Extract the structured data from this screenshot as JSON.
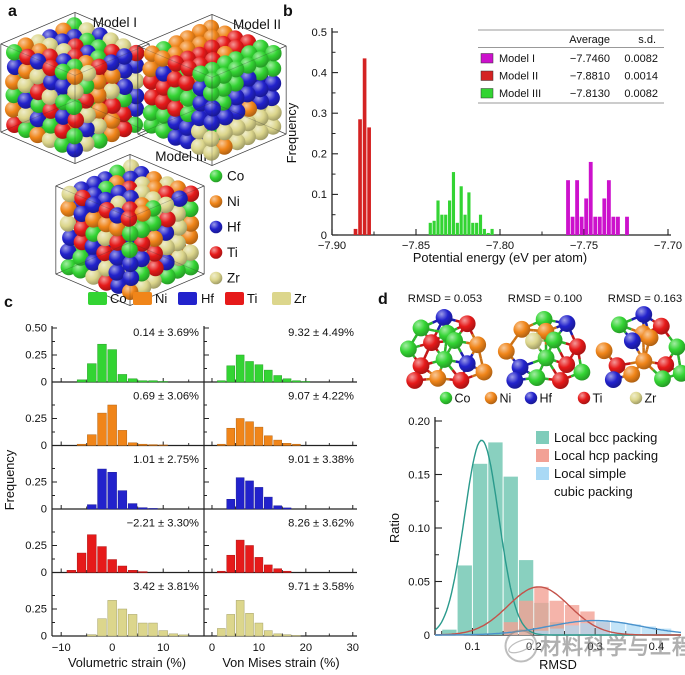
{
  "colors": {
    "Co": "#33d433",
    "Ni": "#f08519",
    "Hf": "#2222cc",
    "Ti": "#e61a1a",
    "Zr": "#dcd68c",
    "model_i": "#cc11cc",
    "model_ii": "#d42222",
    "model_iii": "#33d433",
    "bcc": "#7fccba",
    "hcp": "#f2a195",
    "simple_cubic": "#a9d9f5",
    "bcc_curve": "#2a9a8c",
    "hcp_curve": "#c4524a",
    "sc_curve": "#4a92cc",
    "axis": "#222222"
  },
  "elements": [
    "Co",
    "Ni",
    "Hf",
    "Ti",
    "Zr"
  ],
  "panel_a": {
    "label": "a",
    "models": [
      {
        "name": "Model I"
      },
      {
        "name": "Model II"
      },
      {
        "name": "Model III"
      }
    ],
    "legend": [
      "Co",
      "Ni",
      "Hf",
      "Ti",
      "Zr"
    ]
  },
  "panel_b": {
    "label": "b",
    "xlabel": "Potential energy (eV per atom)",
    "ylabel": "Frequency",
    "table": {
      "headers": [
        "Average",
        "s.d."
      ],
      "rows": [
        {
          "name": "Model I",
          "color": "#cc11cc",
          "average": "−7.7460",
          "sd": "0.0082"
        },
        {
          "name": "Model II",
          "color": "#d42222",
          "average": "−7.8810",
          "sd": "0.0014"
        },
        {
          "name": "Model III",
          "color": "#33d433",
          "average": "−7.8130",
          "sd": "0.0082"
        }
      ]
    }
  },
  "panel_c": {
    "label": "c",
    "ylabel": "Frequency",
    "legend": [
      "Co",
      "Ni",
      "Hf",
      "Ti",
      "Zr"
    ],
    "xlabel_left": "Volumetric strain (%)",
    "xlabel_right": "Von Mises strain (%)"
  },
  "panel_d": {
    "label": "d",
    "cluster_titles": [
      "RMSD = 0.053",
      "RMSD = 0.100",
      "RMSD = 0.163"
    ],
    "legend_elements": [
      "Co",
      "Ni",
      "Hf",
      "Ti",
      "Zr"
    ],
    "xlabel": "RMSD",
    "ylabel": "Ratio",
    "packing_legend": [
      {
        "label_lines": [
          "Local bcc packing"
        ],
        "color_key": "bcc"
      },
      {
        "label_lines": [
          "Local hcp packing"
        ],
        "color_key": "hcp"
      },
      {
        "label_lines": [
          "Local simple",
          "cubic packing"
        ],
        "color_key": "simple_cubic"
      }
    ],
    "clusters": [
      {
        "rmsd": "0.053",
        "jitter": 0,
        "atoms": [
          "Hf",
          "Co",
          "Ti",
          "Co",
          "Co",
          "Ti",
          "Co",
          "Ni",
          "Ti",
          "Co",
          "Hf",
          "Ti",
          "Ni",
          "Ti",
          "Ni"
        ]
      },
      {
        "rmsd": "0.100",
        "jitter": 2.2,
        "atoms": [
          "Co",
          "Ni",
          "Hf",
          "Ni",
          "Ni",
          "Zr",
          "Co",
          "Ti",
          "Hf",
          "Co",
          "Ti",
          "Hf",
          "Co",
          "Ti",
          "Co"
        ]
      },
      {
        "rmsd": "0.163",
        "jitter": 4.5,
        "atoms": [
          "Hf",
          "Co",
          "Ti",
          "Ni",
          "Ni",
          "Hf",
          "Ni",
          "Co",
          "Ti",
          "Ni",
          "Ti",
          "Hf",
          "Ni",
          "Co",
          "Co"
        ]
      }
    ]
  },
  "watermark": {
    "text": "材料科学与工程"
  },
  "chart_data": [
    {
      "id": "panel_b_potential_energy",
      "type": "bar",
      "title": "",
      "xlabel": "Potential energy (eV per atom)",
      "ylabel": "Frequency",
      "xlim": [
        -7.9,
        -7.7
      ],
      "ylim": [
        0,
        0.5
      ],
      "xticks": [
        -7.9,
        -7.85,
        -7.8,
        -7.75,
        -7.7
      ],
      "xtick_labels": [
        "−7.90",
        "−7.85",
        "−7.80",
        "−7.75",
        "−7.70"
      ],
      "minor_xticks": [
        -7.875,
        -7.825,
        -7.775,
        -7.725
      ],
      "yticks": [
        0,
        0.1,
        0.2,
        0.3,
        0.4,
        0.5
      ],
      "ytick_labels": [
        "0",
        "0.1",
        "0.2",
        "0.3",
        "0.4",
        "0.5"
      ],
      "minor_yticks": [
        0.05,
        0.15,
        0.25,
        0.35,
        0.45
      ],
      "legend_position": "table top-right",
      "series": [
        {
          "name": "Model II",
          "color_key": "model_ii",
          "average": -7.881,
          "sd": 0.0014,
          "bin_width": 0.0026,
          "x": [
            -7.886,
            -7.8833,
            -7.8806,
            -7.8779
          ],
          "values": [
            0.015,
            0.285,
            0.435,
            0.265
          ]
        },
        {
          "name": "Model III",
          "color_key": "model_iii",
          "average": -7.813,
          "sd": 0.0082,
          "bin_width": 0.0023,
          "x": [
            -7.8415,
            -7.8392,
            -7.8369,
            -7.8346,
            -7.8323,
            -7.83,
            -7.8277,
            -7.8254,
            -7.8231,
            -7.8208,
            -7.8185,
            -7.8162,
            -7.8139,
            -7.8116,
            -7.8093,
            -7.807,
            -7.8047
          ],
          "values": [
            0.03,
            0.035,
            0.085,
            0.05,
            0.05,
            0.085,
            0.155,
            0.03,
            0.12,
            0.05,
            0.105,
            0.03,
            0.03,
            0.05,
            0.015,
            0.005,
            0.015
          ]
        },
        {
          "name": "Model I",
          "color_key": "model_i",
          "average": -7.746,
          "sd": 0.0082,
          "bin_width": 0.0027,
          "x": [
            -7.7595,
            -7.7568,
            -7.7541,
            -7.7514,
            -7.7487,
            -7.746,
            -7.7433,
            -7.7406,
            -7.7379,
            -7.7352,
            -7.7325,
            -7.7298,
            -7.7271,
            -7.7244
          ],
          "values": [
            0.135,
            0.045,
            0.135,
            0.045,
            0.09,
            0.18,
            0.045,
            0.045,
            0.09,
            0.135,
            0.045,
            0.045,
            0,
            0.045
          ]
        }
      ]
    },
    {
      "id": "panel_c_strain_histograms",
      "type": "bar",
      "ylabel": "Frequency",
      "ylim": [
        0,
        0.5
      ],
      "yticks": [
        0,
        0.25,
        0.5
      ],
      "ytick_labels": [
        "0",
        "0.25",
        "0.50"
      ],
      "bin_width": 2,
      "columns": [
        {
          "key": "volumetric",
          "xlabel": "Volumetric strain (%)",
          "xlim": [
            -11.8,
            17.8
          ],
          "xticks": [
            -10,
            0,
            10
          ],
          "xtick_labels": [
            "−10",
            "0",
            "10"
          ],
          "minor_xticks": [
            -5,
            5,
            15
          ]
        },
        {
          "key": "von_mises",
          "xlabel": "Von Mises strain (%)",
          "xlim": [
            -1.7,
            30.9
          ],
          "xticks": [
            0,
            10,
            20,
            30
          ],
          "xtick_labels": [
            "0",
            "10",
            "20",
            "30"
          ],
          "minor_xticks": [
            5,
            15,
            25
          ]
        }
      ],
      "rows": [
        {
          "element": "Co",
          "volumetric": {
            "mean_sd": "0.14 ± 3.69%",
            "x": [
              -6,
              -4,
              -2,
              0,
              2,
              4,
              6,
              8,
              10
            ],
            "values": [
              0.02,
              0.17,
              0.35,
              0.3,
              0.07,
              0.03,
              0.012,
              0.012,
              0.005
            ]
          },
          "von_mises": {
            "mean_sd": "9.32 ± 4.49%",
            "x": [
              2,
              4,
              6,
              8,
              10,
              12,
              14,
              16,
              18,
              20
            ],
            "values": [
              0.012,
              0.15,
              0.25,
              0.19,
              0.16,
              0.11,
              0.06,
              0.03,
              0.012,
              0.005
            ]
          }
        },
        {
          "element": "Ni",
          "volumetric": {
            "mean_sd": "0.69 ± 3.06%",
            "x": [
              -6,
              -4,
              -2,
              0,
              2,
              4,
              6,
              8,
              10
            ],
            "values": [
              0.012,
              0.1,
              0.3,
              0.375,
              0.14,
              0.025,
              0.012,
              0.008,
              0.005
            ]
          },
          "von_mises": {
            "mean_sd": "9.07 ± 4.22%",
            "x": [
              2,
              4,
              6,
              8,
              10,
              12,
              14,
              16,
              18
            ],
            "values": [
              0.012,
              0.16,
              0.25,
              0.22,
              0.17,
              0.09,
              0.05,
              0.02,
              0.012
            ]
          }
        },
        {
          "element": "Hf",
          "volumetric": {
            "mean_sd": "1.01 ± 2.75%",
            "x": [
              -4,
              -2,
              0,
              2,
              4,
              6,
              8
            ],
            "values": [
              0.04,
              0.37,
              0.34,
              0.17,
              0.05,
              0.012,
              0.005
            ]
          },
          "von_mises": {
            "mean_sd": "9.01 ± 3.38%",
            "x": [
              4,
              6,
              8,
              10,
              12,
              14,
              16
            ],
            "values": [
              0.09,
              0.29,
              0.26,
              0.2,
              0.11,
              0.03,
              0.01
            ]
          }
        },
        {
          "element": "Ti",
          "volumetric": {
            "mean_sd": "−2.21 ± 3.30%",
            "x": [
              -8,
              -6,
              -4,
              -2,
              0,
              2,
              4,
              6
            ],
            "values": [
              0.02,
              0.18,
              0.35,
              0.24,
              0.12,
              0.06,
              0.02,
              0.008
            ]
          },
          "von_mises": {
            "mean_sd": "8.26 ± 3.62%",
            "x": [
              2,
              4,
              6,
              8,
              10,
              12,
              14,
              16
            ],
            "values": [
              0.012,
              0.16,
              0.3,
              0.25,
              0.14,
              0.07,
              0.035,
              0.012
            ]
          }
        },
        {
          "element": "Zr",
          "volumetric": {
            "mean_sd": "3.42 ± 3.81%",
            "x": [
              -4,
              -2,
              0,
              2,
              4,
              6,
              8,
              10,
              12,
              14
            ],
            "values": [
              0.012,
              0.16,
              0.33,
              0.25,
              0.2,
              0.12,
              0.12,
              0.05,
              0.02,
              0.01
            ]
          },
          "von_mises": {
            "mean_sd": "9.71 ± 3.58%",
            "x": [
              2,
              4,
              6,
              8,
              10,
              12,
              14,
              16,
              18
            ],
            "values": [
              0.07,
              0.2,
              0.33,
              0.21,
              0.12,
              0.05,
              0.02,
              0.012,
              0.005
            ]
          }
        }
      ]
    },
    {
      "id": "panel_d_rmsd_distribution",
      "type": "bar",
      "xlabel": "RMSD",
      "ylabel": "Ratio",
      "xlim": [
        0.039,
        0.44
      ],
      "ylim": [
        0,
        0.2
      ],
      "xticks": [
        0.1,
        0.2,
        0.3,
        0.4
      ],
      "xtick_labels": [
        "0.1",
        "0.2",
        "0.3",
        "0.4"
      ],
      "minor_xticks": [
        0.05,
        0.15,
        0.25,
        0.35
      ],
      "yticks": [
        0,
        0.05,
        0.1,
        0.15,
        0.2
      ],
      "ytick_labels": [
        "0",
        "0.05",
        "0.10",
        "0.15",
        "0.20"
      ],
      "minor_yticks": [
        0.025,
        0.075,
        0.125,
        0.175
      ],
      "bin_width": 0.025,
      "series": [
        {
          "name": "Local bcc packing",
          "color_key": "bcc",
          "opacity": 0.92,
          "x": [
            0.0625,
            0.0875,
            0.1125,
            0.1375,
            0.1625,
            0.1875,
            0.2125,
            0.2375
          ],
          "values": [
            0.005,
            0.065,
            0.16,
            0.18,
            0.148,
            0.07,
            0.03,
            0.012
          ],
          "curve": {
            "amp": 0.182,
            "mu": 0.115,
            "sigma": 0.028,
            "color_key": "bcc_curve"
          }
        },
        {
          "name": "Local hcp packing",
          "color_key": "hcp",
          "opacity": 0.8,
          "x": [
            0.1625,
            0.1875,
            0.2125,
            0.2375,
            0.2625,
            0.2875,
            0.3125
          ],
          "values": [
            0.012,
            0.032,
            0.045,
            0.032,
            0.028,
            0.022,
            0.012
          ],
          "curve": {
            "amp": 0.045,
            "mu": 0.208,
            "sigma": 0.05,
            "color_key": "hcp_curve"
          }
        },
        {
          "name": "Local simple cubic packing",
          "color_key": "simple_cubic",
          "opacity": 0.7,
          "x": [
            0.2125,
            0.2375,
            0.2625,
            0.2875,
            0.3125,
            0.3375,
            0.3625,
            0.3875,
            0.4125
          ],
          "values": [
            0.004,
            0.006,
            0.009,
            0.011,
            0.013,
            0.012,
            0.01,
            0.008,
            0.006
          ],
          "curve": {
            "amp": 0.0135,
            "mu": 0.3,
            "sigma": 0.075,
            "color_key": "sc_curve"
          }
        }
      ]
    }
  ]
}
